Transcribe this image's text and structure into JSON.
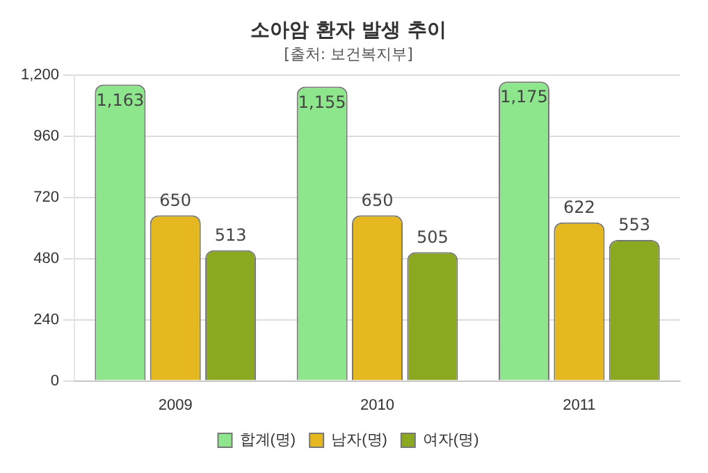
{
  "chart_data": {
    "type": "bar",
    "title": "소아암 환자 발생 추이",
    "subtitle": "[출처: 보건복지부]",
    "categories": [
      "2009",
      "2010",
      "2011"
    ],
    "series": [
      {
        "name": "합계(명)",
        "color": "#8ee68c",
        "values": [
          1163,
          1155,
          1175
        ],
        "value_labels": [
          "1,163",
          "1,155",
          "1,175"
        ]
      },
      {
        "name": "남자(명)",
        "color": "#e6b820",
        "values": [
          650,
          650,
          622
        ],
        "value_labels": [
          "650",
          "650",
          "622"
        ]
      },
      {
        "name": "여자(명)",
        "color": "#8aa820",
        "values": [
          513,
          505,
          553
        ],
        "value_labels": [
          "513",
          "505",
          "553"
        ]
      }
    ],
    "ylim": [
      0,
      1200
    ],
    "yticks": [
      0,
      240,
      480,
      720,
      960,
      {
        "value": 1200,
        "label": "1,200"
      }
    ],
    "grid": "y",
    "legend": "bottom"
  }
}
